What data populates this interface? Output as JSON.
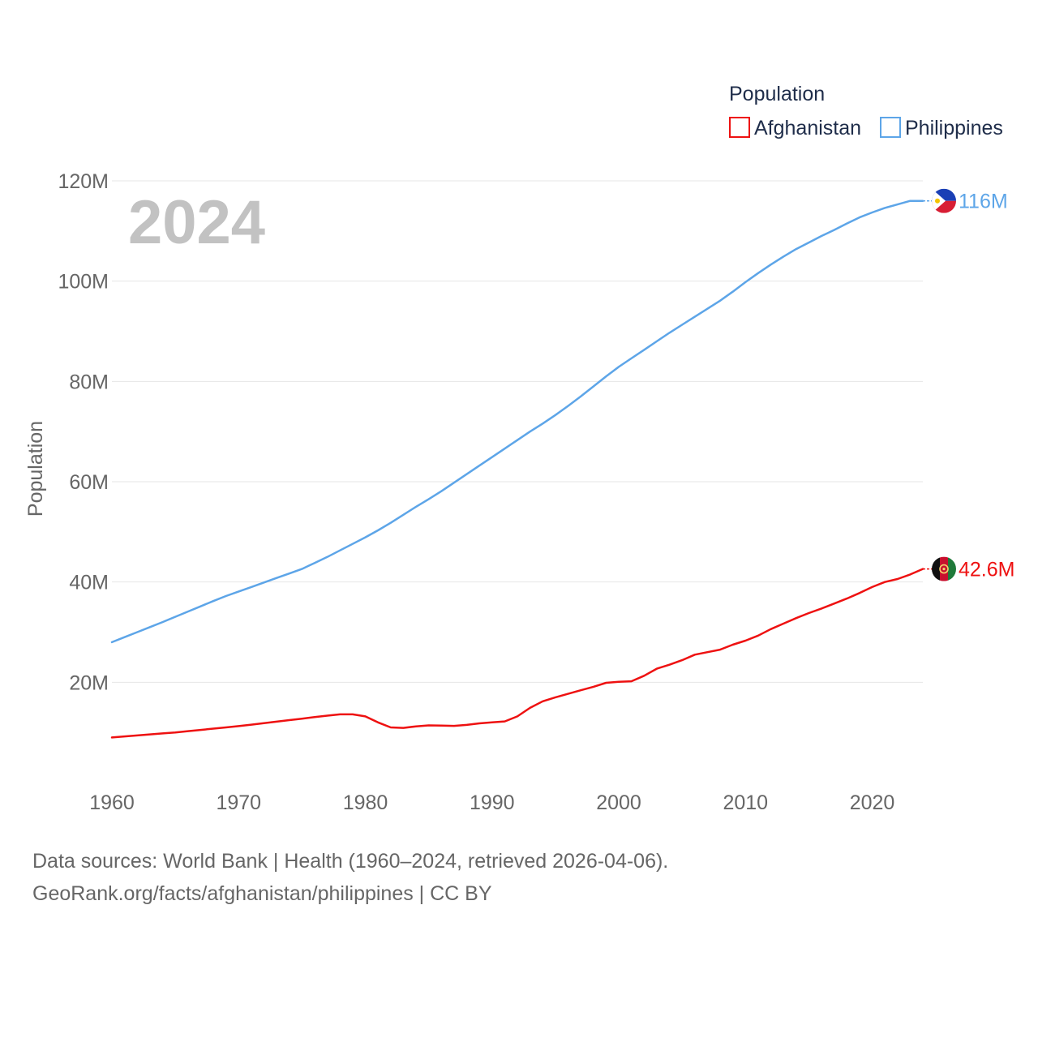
{
  "chart_data": {
    "type": "line",
    "year_label": "2024",
    "ylabel": "Population",
    "legend": {
      "title": "Population",
      "placement": "top-right"
    },
    "ylim": [
      0,
      120000000
    ],
    "xlim": [
      1960,
      2024
    ],
    "y_ticks": [
      {
        "value": 20000000,
        "label": "20M"
      },
      {
        "value": 40000000,
        "label": "40M"
      },
      {
        "value": 60000000,
        "label": "60M"
      },
      {
        "value": 80000000,
        "label": "80M"
      },
      {
        "value": 100000000,
        "label": "100M"
      },
      {
        "value": 120000000,
        "label": "120M"
      }
    ],
    "x_ticks": [
      {
        "value": 1960,
        "label": "1960"
      },
      {
        "value": 1970,
        "label": "1970"
      },
      {
        "value": 1980,
        "label": "1980"
      },
      {
        "value": 1990,
        "label": "1990"
      },
      {
        "value": 2000,
        "label": "2000"
      },
      {
        "value": 2010,
        "label": "2010"
      },
      {
        "value": 2020,
        "label": "2020"
      }
    ],
    "x": [
      1960,
      1961,
      1962,
      1963,
      1964,
      1965,
      1966,
      1967,
      1968,
      1969,
      1970,
      1971,
      1972,
      1973,
      1974,
      1975,
      1976,
      1977,
      1978,
      1979,
      1980,
      1981,
      1982,
      1983,
      1984,
      1985,
      1986,
      1987,
      1988,
      1989,
      1990,
      1991,
      1992,
      1993,
      1994,
      1995,
      1996,
      1997,
      1998,
      1999,
      2000,
      2001,
      2002,
      2003,
      2004,
      2005,
      2006,
      2007,
      2008,
      2009,
      2010,
      2011,
      2012,
      2013,
      2014,
      2015,
      2016,
      2017,
      2018,
      2019,
      2020,
      2021,
      2022,
      2023,
      2024
    ],
    "series": [
      {
        "name": "Afghanistan",
        "color": "#ee1111",
        "end_label": "42.6M",
        "flag": "afghanistan",
        "values": [
          9000000,
          9200000,
          9400000,
          9600000,
          9800000,
          10000000,
          10250000,
          10500000,
          10750000,
          11000000,
          11250000,
          11550000,
          11850000,
          12150000,
          12450000,
          12750000,
          13050000,
          13350000,
          13600000,
          13600000,
          13200000,
          12000000,
          11000000,
          10900000,
          11200000,
          11400000,
          11350000,
          11300000,
          11500000,
          11800000,
          12000000,
          12200000,
          13200000,
          14900000,
          16200000,
          17000000,
          17700000,
          18400000,
          19100000,
          19900000,
          20100000,
          20200000,
          21300000,
          22700000,
          23500000,
          24400000,
          25500000,
          26000000,
          26500000,
          27500000,
          28300000,
          29300000,
          30600000,
          31700000,
          32800000,
          33800000,
          34700000,
          35700000,
          36700000,
          37800000,
          39000000,
          40000000,
          40600000,
          41500000,
          42600000
        ]
      },
      {
        "name": "Philippines",
        "color": "#5da5e8",
        "end_label": "116M",
        "flag": "philippines",
        "values": [
          28000000,
          29000000,
          30000000,
          31000000,
          32000000,
          33050000,
          34100000,
          35150000,
          36200000,
          37200000,
          38100000,
          39000000,
          39900000,
          40800000,
          41700000,
          42600000,
          43800000,
          45000000,
          46300000,
          47600000,
          48900000,
          50300000,
          51800000,
          53400000,
          55000000,
          56500000,
          58100000,
          59800000,
          61500000,
          63200000,
          64900000,
          66600000,
          68300000,
          70000000,
          71600000,
          73300000,
          75100000,
          77000000,
          79000000,
          81000000,
          82900000,
          84600000,
          86300000,
          88000000,
          89700000,
          91300000,
          92900000,
          94500000,
          96100000,
          97900000,
          99800000,
          101600000,
          103300000,
          104900000,
          106400000,
          107700000,
          109000000,
          110200000,
          111500000,
          112700000,
          113700000,
          114600000,
          115300000,
          116000000,
          116000000
        ]
      }
    ]
  },
  "footer": {
    "sources": "Data sources: World Bank | Health (1960–2024, retrieved 2026-04-06).",
    "credit": "GeoRank.org/facts/afghanistan/philippines | CC BY"
  }
}
